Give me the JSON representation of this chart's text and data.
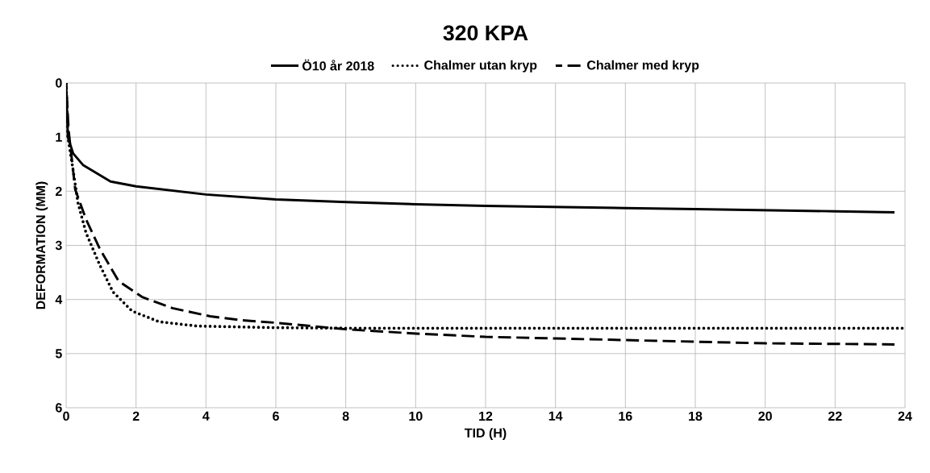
{
  "chart_data": {
    "type": "line",
    "title": "320 KPA",
    "xlabel": "TID (H)",
    "ylabel": "DEFORMATION (MM)",
    "xlim": [
      0,
      24
    ],
    "xticks": [
      0,
      2,
      4,
      6,
      8,
      10,
      12,
      14,
      16,
      18,
      20,
      22,
      24
    ],
    "ylim": [
      6,
      0
    ],
    "yticks": [
      0,
      1,
      2,
      3,
      4,
      5,
      6
    ],
    "grid": true,
    "legend": "top",
    "series": [
      {
        "name": "Ö10 år 2018",
        "color": "#000000",
        "line_style": "solid",
        "x": [
          0,
          0.05,
          0.2,
          0.49,
          1.27,
          2,
          4,
          6,
          8,
          10,
          12,
          14,
          16,
          18,
          20,
          22,
          23.7
        ],
        "values": [
          0,
          1.0,
          1.3,
          1.52,
          1.82,
          1.91,
          2.06,
          2.15,
          2.2,
          2.24,
          2.27,
          2.29,
          2.31,
          2.33,
          2.35,
          2.37,
          2.39
        ]
      },
      {
        "name": "Chalmer utan kryp",
        "color": "#000000",
        "line_style": "dotted",
        "x": [
          0,
          0.05,
          0.19,
          0.34,
          0.57,
          0.96,
          1.34,
          1.88,
          2.65,
          3.74,
          6,
          8,
          12,
          16,
          20,
          24
        ],
        "values": [
          0,
          1.0,
          1.57,
          2.22,
          2.77,
          3.36,
          3.86,
          4.21,
          4.41,
          4.49,
          4.52,
          4.53,
          4.53,
          4.53,
          4.53,
          4.53
        ]
      },
      {
        "name": "Chalmer med kryp",
        "color": "#000000",
        "line_style": "dashed",
        "x": [
          0,
          0.07,
          0.26,
          0.57,
          0.96,
          1.5,
          2.19,
          3.04,
          4.12,
          4.97,
          6,
          8,
          10,
          12,
          14,
          16,
          18,
          20,
          22,
          23.7
        ],
        "values": [
          0,
          0.87,
          1.97,
          2.52,
          3.06,
          3.66,
          3.96,
          4.16,
          4.31,
          4.38,
          4.43,
          4.55,
          4.63,
          4.69,
          4.72,
          4.75,
          4.78,
          4.81,
          4.82,
          4.83
        ]
      }
    ]
  }
}
